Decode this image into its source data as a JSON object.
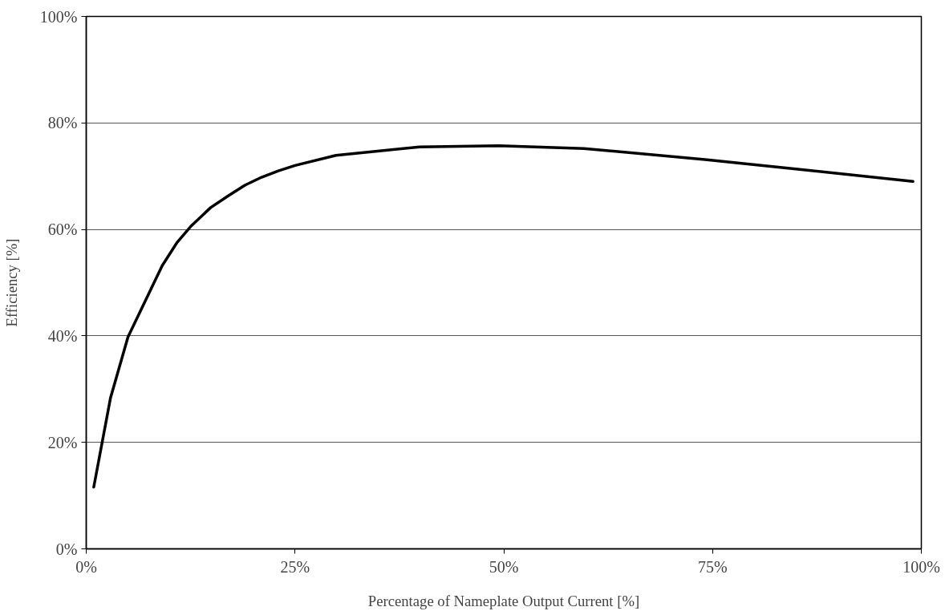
{
  "chart_data": {
    "type": "line",
    "xlabel": "Percentage of Nameplate Output Current [%]",
    "ylabel": "Efficiency [%]",
    "x": [
      0.9,
      2.9,
      5.0,
      9.1,
      10.9,
      12.6,
      14.9,
      17.0,
      19.0,
      21.0,
      23.0,
      25.0,
      29.9,
      39.9,
      49.4,
      59.6,
      74.1,
      85.2,
      99.0
    ],
    "series": [
      {
        "color": "#000000",
        "values": [
          11.6,
          28.3,
          39.8,
          53.2,
          57.6,
          60.7,
          64.1,
          66.3,
          68.3,
          69.8,
          71.0,
          72.0,
          73.9,
          75.5,
          75.7,
          75.2,
          73.1,
          71.3,
          69.0
        ]
      }
    ],
    "xlim": [
      0,
      100
    ],
    "ylim": [
      0,
      100
    ],
    "xticks": [
      {
        "value": 0,
        "label": "0%"
      },
      {
        "value": 25,
        "label": "25%"
      },
      {
        "value": 50,
        "label": "50%"
      },
      {
        "value": 75,
        "label": "75%"
      },
      {
        "value": 100,
        "label": "100%"
      }
    ],
    "yticks": [
      {
        "value": 0,
        "label": "0%"
      },
      {
        "value": 20,
        "label": "20%"
      },
      {
        "value": 40,
        "label": "40%"
      },
      {
        "value": 60,
        "label": "60%"
      },
      {
        "value": 80,
        "label": "80%"
      },
      {
        "value": 100,
        "label": "100%"
      }
    ],
    "grid": "y",
    "marker": "none",
    "line_style": "solid"
  }
}
